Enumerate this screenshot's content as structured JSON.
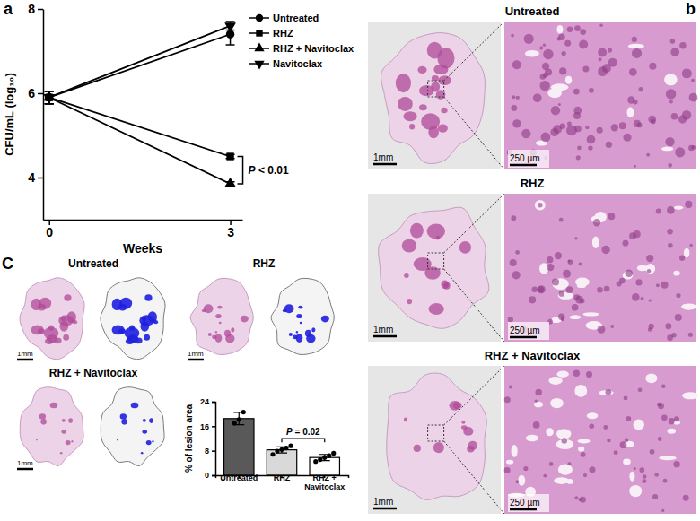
{
  "figure": {
    "panel_labels": [
      "a",
      "b",
      "C"
    ]
  },
  "chart_data": [
    {
      "type": "line",
      "x_label": "Weeks",
      "y_label": "CFU/mL (log₁₀)",
      "x": [
        0,
        3
      ],
      "xlim": [
        -0.1,
        3.2
      ],
      "xticks": [
        0,
        3
      ],
      "ylim": [
        3,
        8
      ],
      "yticks": [
        4,
        6,
        8
      ],
      "color": "#000000",
      "legend": "top-right",
      "series": [
        {
          "name": "Untreated",
          "marker": "circle",
          "values": [
            5.9,
            7.4
          ],
          "errors": [
            0.15,
            0.25
          ]
        },
        {
          "name": "RHZ",
          "marker": "square",
          "values": [
            5.9,
            4.5
          ],
          "errors": [
            0.15,
            0.05
          ]
        },
        {
          "name": "RHZ + Navitoclax",
          "marker": "triangle-up",
          "values": [
            5.9,
            3.85
          ],
          "errors": [
            0.15,
            0.05
          ]
        },
        {
          "name": "Navitoclax",
          "marker": "triangle-down",
          "values": [
            5.9,
            7.6
          ],
          "errors": [
            0.15,
            0.1
          ]
        }
      ],
      "annotations": [
        {
          "text": "P < 0.01",
          "series": [
            "RHZ",
            "RHZ + Navitoclax"
          ]
        }
      ]
    },
    {
      "type": "bar",
      "y_label": "% of lesion area",
      "categories": [
        "Untreated",
        "RHZ",
        "RHZ + Navitoclax"
      ],
      "values": [
        18.5,
        8.3,
        5.8
      ],
      "errors": [
        2.0,
        1.0,
        1.0
      ],
      "colors": [
        "#595959",
        "#d9d9d9",
        "#ffffff"
      ],
      "points": [
        [
          17.0,
          18.2,
          20.6
        ],
        [
          6.8,
          7.9,
          8.4,
          8.9,
          9.6
        ],
        [
          4.5,
          5.1,
          5.8,
          6.4,
          7.2
        ]
      ],
      "ylim": [
        0,
        24
      ],
      "yticks": [
        0,
        8,
        16,
        24
      ],
      "annotations": [
        {
          "text": "P = 0.02",
          "categories": [
            "RHZ",
            "RHZ + Navitoclax"
          ]
        }
      ]
    }
  ],
  "images": {
    "panel_b": [
      {
        "title": "Untreated",
        "scale_bars": [
          "1mm",
          "250 µm"
        ]
      },
      {
        "title": "RHZ",
        "scale_bars": [
          "1mm",
          "250 µm"
        ]
      },
      {
        "title": "RHZ + Navitoclax",
        "scale_bars": [
          "1mm",
          "250 µm"
        ]
      }
    ],
    "panel_c": [
      {
        "title": "Untreated",
        "scale_bar": "1mm"
      },
      {
        "title": "RHZ",
        "scale_bar": "1mm"
      },
      {
        "title": "RHZ + Navitoclax",
        "scale_bar": "1mm"
      }
    ]
  }
}
